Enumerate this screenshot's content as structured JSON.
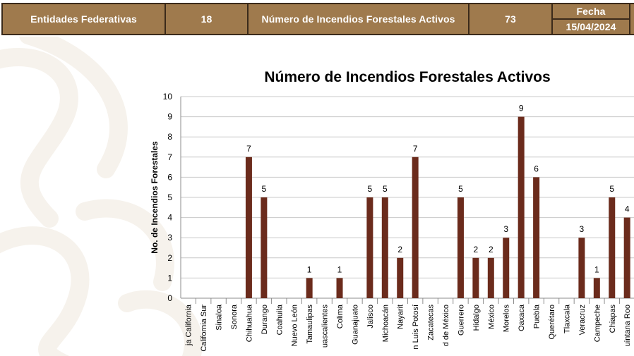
{
  "header": {
    "entities_label": "Entidades Federativas",
    "entities_count": "18",
    "fires_label": "Número de Incendios Forestales  Activos",
    "fires_count": "73",
    "date_label": "Fecha",
    "date_value": "15/04/2024"
  },
  "colors": {
    "header_bg": "#9f7a4d",
    "bar": "#6b2b1c",
    "grid": "#c8c8c8"
  },
  "chart_data": {
    "type": "bar",
    "title": "Número de Incendios Forestales Activos",
    "ylabel": "No. de Incendios Forestales",
    "xlabel": "",
    "ylim": [
      0,
      10
    ],
    "yticks": [
      0,
      1,
      2,
      3,
      4,
      5,
      6,
      7,
      8,
      9,
      10
    ],
    "grid": true,
    "categories": [
      "ja California",
      "California Sur",
      "Sinaloa",
      "Sonora",
      "Chihuahua",
      "Durango",
      "Coahuila",
      "Nuevo León",
      "Tamaulipas",
      "uascalientes",
      "Colima",
      "Guanajuato",
      "Jalisco",
      "Michoacán",
      "Nayarit",
      "n Luis Potosí",
      "Zacatecas",
      "d de México",
      "Guerrero",
      "Hidalgo",
      "México",
      "Morelos",
      "Oaxaca",
      "Puebla",
      "Querétaro",
      "Tlaxcala",
      "Veracruz",
      "Campeche",
      "Chiapas",
      "uintana Roo"
    ],
    "values": [
      0,
      0,
      0,
      0,
      7,
      5,
      0,
      0,
      1,
      0,
      1,
      0,
      5,
      5,
      2,
      7,
      0,
      0,
      5,
      2,
      2,
      3,
      9,
      6,
      0,
      0,
      3,
      1,
      5,
      4
    ]
  }
}
